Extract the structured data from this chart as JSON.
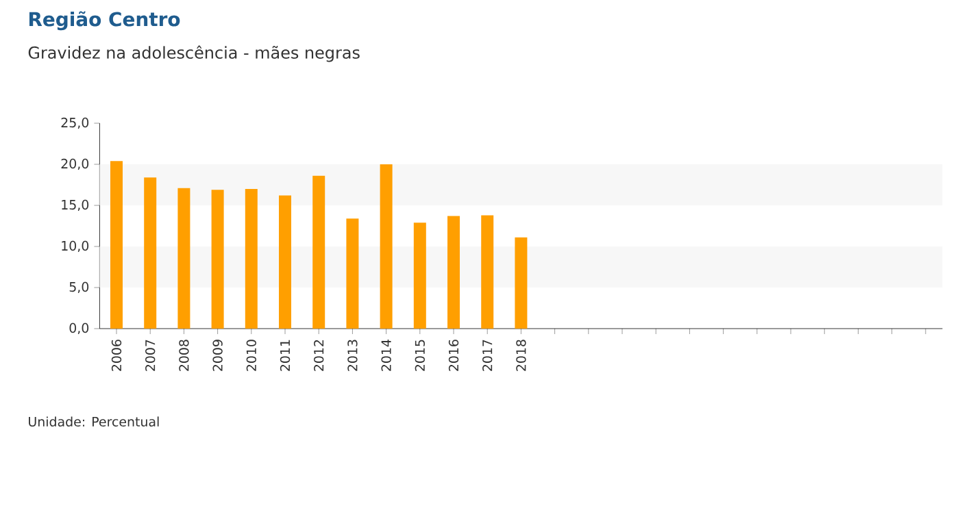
{
  "chart_data": {
    "type": "bar",
    "title": "Região Centro",
    "subtitle": "Gravidez na adolescência - mães negras",
    "categories": [
      "2006",
      "2007",
      "2008",
      "2009",
      "2010",
      "2011",
      "2012",
      "2013",
      "2014",
      "2015",
      "2016",
      "2017",
      "2018",
      null,
      null,
      null,
      null,
      null,
      null,
      null,
      null,
      null,
      null,
      null,
      null
    ],
    "values": [
      20.4,
      18.4,
      17.1,
      16.9,
      17.0,
      16.2,
      18.6,
      13.4,
      20.0,
      12.9,
      13.7,
      13.8,
      11.1,
      null,
      null,
      null,
      null,
      null,
      null,
      null,
      null,
      null,
      null,
      null,
      null
    ],
    "color": "#ff9f00",
    "ylim": [
      0,
      25
    ],
    "yticks": [
      {
        "value": 0,
        "label": "0,0"
      },
      {
        "value": 5,
        "label": "5,0"
      },
      {
        "value": 10,
        "label": "10,0"
      },
      {
        "value": 15,
        "label": "15,0"
      },
      {
        "value": 20,
        "label": "20,0"
      },
      {
        "value": 25,
        "label": "25,0"
      }
    ],
    "bands": [
      {
        "axis": "y",
        "from": 5,
        "to": 10,
        "color": "#f7f7f7"
      },
      {
        "axis": "y",
        "from": 15,
        "to": 20,
        "color": "#f7f7f7"
      }
    ],
    "annotations": [
      "Unidade: Percentual"
    ]
  }
}
